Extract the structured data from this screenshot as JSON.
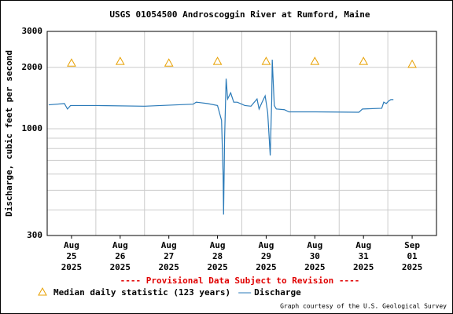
{
  "chart_data": {
    "type": "line",
    "title": "USGS 01054500 Androscoggin River at Rumford, Maine",
    "y_label": "Discharge, cubic feet per second",
    "annotation": "---- Provisional Data Subject to Revision ----",
    "credit": "Graph courtesy of the U.S. Geological Survey",
    "log_y": true,
    "grid": true,
    "ylim": [
      300,
      3000
    ],
    "yticks": [
      300,
      1000,
      2000,
      3000
    ],
    "minor_yticks": [
      400,
      500,
      600,
      700,
      800,
      900
    ],
    "xlim": [
      "2025-08-25T00:00",
      "2025-09-02T00:00"
    ],
    "xticks": [
      {
        "value": "2025-08-25T12:00",
        "label": "Aug\n25\n2025"
      },
      {
        "value": "2025-08-26T12:00",
        "label": "Aug\n26\n2025"
      },
      {
        "value": "2025-08-27T12:00",
        "label": "Aug\n27\n2025"
      },
      {
        "value": "2025-08-28T12:00",
        "label": "Aug\n28\n2025"
      },
      {
        "value": "2025-08-29T12:00",
        "label": "Aug\n29\n2025"
      },
      {
        "value": "2025-08-30T12:00",
        "label": "Aug\n30\n2025"
      },
      {
        "value": "2025-08-31T12:00",
        "label": "Aug\n31\n2025"
      },
      {
        "value": "2025-09-01T12:00",
        "label": "Sep\n01\n2025"
      }
    ],
    "xgrid": [
      "2025-08-26T00:00",
      "2025-08-27T00:00",
      "2025-08-28T00:00",
      "2025-08-29T00:00",
      "2025-08-30T00:00",
      "2025-08-31T00:00",
      "2025-09-01T00:00"
    ],
    "series": [
      {
        "name": "Median daily statistic (123 years)",
        "color": "#e8a000",
        "marker": "triangle",
        "x": [
          "2025-08-25T12:00",
          "2025-08-26T12:00",
          "2025-08-27T12:00",
          "2025-08-28T12:00",
          "2025-08-29T12:00",
          "2025-08-30T12:00",
          "2025-08-31T12:00",
          "2025-09-01T12:00"
        ],
        "values": [
          2100,
          2140,
          2100,
          2140,
          2140,
          2140,
          2140,
          2070
        ]
      },
      {
        "name": "Discharge",
        "color": "#2a7ab8",
        "marker": "line",
        "x": [
          "2025-08-25T00:45",
          "2025-08-25T08:30",
          "2025-08-25T10:00",
          "2025-08-25T11:30",
          "2025-08-26T00:00",
          "2025-08-27T00:00",
          "2025-08-28T00:00",
          "2025-08-28T01:30",
          "2025-08-28T07:00",
          "2025-08-28T12:00",
          "2025-08-28T14:00",
          "2025-08-28T14:45",
          "2025-08-28T15:00",
          "2025-08-28T15:30",
          "2025-08-28T16:15",
          "2025-08-28T17:00",
          "2025-08-28T18:30",
          "2025-08-28T20:00",
          "2025-08-28T21:45",
          "2025-08-29T01:30",
          "2025-08-29T04:30",
          "2025-08-29T07:30",
          "2025-08-29T08:30",
          "2025-08-29T10:00",
          "2025-08-29T11:30",
          "2025-08-29T12:45",
          "2025-08-29T14:00",
          "2025-08-29T14:45",
          "2025-08-29T15:00",
          "2025-08-29T16:00",
          "2025-08-29T17:00",
          "2025-08-29T21:00",
          "2025-08-29T23:15",
          "2025-08-30T12:30",
          "2025-08-31T09:45",
          "2025-08-31T11:30",
          "2025-08-31T21:00",
          "2025-08-31T22:00",
          "2025-08-31T23:15",
          "2025-09-01T00:30",
          "2025-09-01T01:30",
          "2025-09-01T02:45"
        ],
        "values": [
          1310,
          1330,
          1250,
          1300,
          1300,
          1290,
          1320,
          1350,
          1330,
          1300,
          1100,
          600,
          380,
          900,
          1760,
          1400,
          1500,
          1350,
          1350,
          1300,
          1290,
          1400,
          1250,
          1350,
          1450,
          1200,
          740,
          1400,
          2180,
          1300,
          1250,
          1240,
          1210,
          1210,
          1205,
          1250,
          1260,
          1350,
          1330,
          1370,
          1390,
          1390
        ]
      }
    ]
  }
}
